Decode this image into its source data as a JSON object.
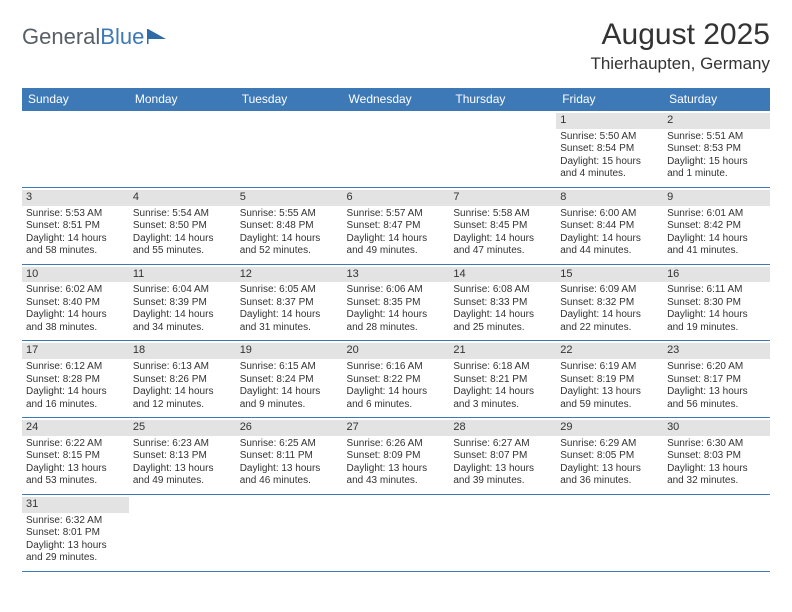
{
  "logo": {
    "part1": "General",
    "part2": "Blue"
  },
  "title": "August 2025",
  "location": "Thierhaupten, Germany",
  "header_bg": "#3d78b7",
  "columns": [
    "Sunday",
    "Monday",
    "Tuesday",
    "Wednesday",
    "Thursday",
    "Friday",
    "Saturday"
  ],
  "weeks": [
    [
      null,
      null,
      null,
      null,
      null,
      {
        "n": "1",
        "sr": "Sunrise: 5:50 AM",
        "ss": "Sunset: 8:54 PM",
        "d1": "Daylight: 15 hours",
        "d2": "and 4 minutes."
      },
      {
        "n": "2",
        "sr": "Sunrise: 5:51 AM",
        "ss": "Sunset: 8:53 PM",
        "d1": "Daylight: 15 hours",
        "d2": "and 1 minute."
      }
    ],
    [
      {
        "n": "3",
        "sr": "Sunrise: 5:53 AM",
        "ss": "Sunset: 8:51 PM",
        "d1": "Daylight: 14 hours",
        "d2": "and 58 minutes."
      },
      {
        "n": "4",
        "sr": "Sunrise: 5:54 AM",
        "ss": "Sunset: 8:50 PM",
        "d1": "Daylight: 14 hours",
        "d2": "and 55 minutes."
      },
      {
        "n": "5",
        "sr": "Sunrise: 5:55 AM",
        "ss": "Sunset: 8:48 PM",
        "d1": "Daylight: 14 hours",
        "d2": "and 52 minutes."
      },
      {
        "n": "6",
        "sr": "Sunrise: 5:57 AM",
        "ss": "Sunset: 8:47 PM",
        "d1": "Daylight: 14 hours",
        "d2": "and 49 minutes."
      },
      {
        "n": "7",
        "sr": "Sunrise: 5:58 AM",
        "ss": "Sunset: 8:45 PM",
        "d1": "Daylight: 14 hours",
        "d2": "and 47 minutes."
      },
      {
        "n": "8",
        "sr": "Sunrise: 6:00 AM",
        "ss": "Sunset: 8:44 PM",
        "d1": "Daylight: 14 hours",
        "d2": "and 44 minutes."
      },
      {
        "n": "9",
        "sr": "Sunrise: 6:01 AM",
        "ss": "Sunset: 8:42 PM",
        "d1": "Daylight: 14 hours",
        "d2": "and 41 minutes."
      }
    ],
    [
      {
        "n": "10",
        "sr": "Sunrise: 6:02 AM",
        "ss": "Sunset: 8:40 PM",
        "d1": "Daylight: 14 hours",
        "d2": "and 38 minutes."
      },
      {
        "n": "11",
        "sr": "Sunrise: 6:04 AM",
        "ss": "Sunset: 8:39 PM",
        "d1": "Daylight: 14 hours",
        "d2": "and 34 minutes."
      },
      {
        "n": "12",
        "sr": "Sunrise: 6:05 AM",
        "ss": "Sunset: 8:37 PM",
        "d1": "Daylight: 14 hours",
        "d2": "and 31 minutes."
      },
      {
        "n": "13",
        "sr": "Sunrise: 6:06 AM",
        "ss": "Sunset: 8:35 PM",
        "d1": "Daylight: 14 hours",
        "d2": "and 28 minutes."
      },
      {
        "n": "14",
        "sr": "Sunrise: 6:08 AM",
        "ss": "Sunset: 8:33 PM",
        "d1": "Daylight: 14 hours",
        "d2": "and 25 minutes."
      },
      {
        "n": "15",
        "sr": "Sunrise: 6:09 AM",
        "ss": "Sunset: 8:32 PM",
        "d1": "Daylight: 14 hours",
        "d2": "and 22 minutes."
      },
      {
        "n": "16",
        "sr": "Sunrise: 6:11 AM",
        "ss": "Sunset: 8:30 PM",
        "d1": "Daylight: 14 hours",
        "d2": "and 19 minutes."
      }
    ],
    [
      {
        "n": "17",
        "sr": "Sunrise: 6:12 AM",
        "ss": "Sunset: 8:28 PM",
        "d1": "Daylight: 14 hours",
        "d2": "and 16 minutes."
      },
      {
        "n": "18",
        "sr": "Sunrise: 6:13 AM",
        "ss": "Sunset: 8:26 PM",
        "d1": "Daylight: 14 hours",
        "d2": "and 12 minutes."
      },
      {
        "n": "19",
        "sr": "Sunrise: 6:15 AM",
        "ss": "Sunset: 8:24 PM",
        "d1": "Daylight: 14 hours",
        "d2": "and 9 minutes."
      },
      {
        "n": "20",
        "sr": "Sunrise: 6:16 AM",
        "ss": "Sunset: 8:22 PM",
        "d1": "Daylight: 14 hours",
        "d2": "and 6 minutes."
      },
      {
        "n": "21",
        "sr": "Sunrise: 6:18 AM",
        "ss": "Sunset: 8:21 PM",
        "d1": "Daylight: 14 hours",
        "d2": "and 3 minutes."
      },
      {
        "n": "22",
        "sr": "Sunrise: 6:19 AM",
        "ss": "Sunset: 8:19 PM",
        "d1": "Daylight: 13 hours",
        "d2": "and 59 minutes."
      },
      {
        "n": "23",
        "sr": "Sunrise: 6:20 AM",
        "ss": "Sunset: 8:17 PM",
        "d1": "Daylight: 13 hours",
        "d2": "and 56 minutes."
      }
    ],
    [
      {
        "n": "24",
        "sr": "Sunrise: 6:22 AM",
        "ss": "Sunset: 8:15 PM",
        "d1": "Daylight: 13 hours",
        "d2": "and 53 minutes."
      },
      {
        "n": "25",
        "sr": "Sunrise: 6:23 AM",
        "ss": "Sunset: 8:13 PM",
        "d1": "Daylight: 13 hours",
        "d2": "and 49 minutes."
      },
      {
        "n": "26",
        "sr": "Sunrise: 6:25 AM",
        "ss": "Sunset: 8:11 PM",
        "d1": "Daylight: 13 hours",
        "d2": "and 46 minutes."
      },
      {
        "n": "27",
        "sr": "Sunrise: 6:26 AM",
        "ss": "Sunset: 8:09 PM",
        "d1": "Daylight: 13 hours",
        "d2": "and 43 minutes."
      },
      {
        "n": "28",
        "sr": "Sunrise: 6:27 AM",
        "ss": "Sunset: 8:07 PM",
        "d1": "Daylight: 13 hours",
        "d2": "and 39 minutes."
      },
      {
        "n": "29",
        "sr": "Sunrise: 6:29 AM",
        "ss": "Sunset: 8:05 PM",
        "d1": "Daylight: 13 hours",
        "d2": "and 36 minutes."
      },
      {
        "n": "30",
        "sr": "Sunrise: 6:30 AM",
        "ss": "Sunset: 8:03 PM",
        "d1": "Daylight: 13 hours",
        "d2": "and 32 minutes."
      }
    ],
    [
      {
        "n": "31",
        "sr": "Sunrise: 6:32 AM",
        "ss": "Sunset: 8:01 PM",
        "d1": "Daylight: 13 hours",
        "d2": "and 29 minutes."
      },
      null,
      null,
      null,
      null,
      null,
      null
    ]
  ]
}
